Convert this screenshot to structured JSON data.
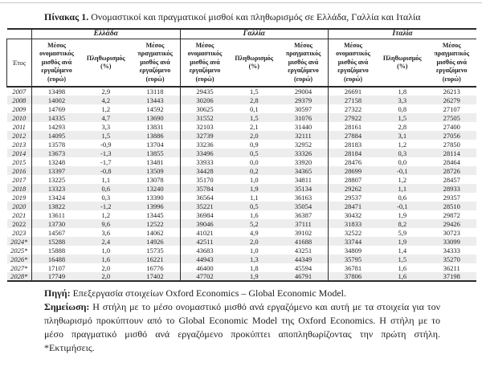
{
  "page": {
    "title_bold": "Πίνακας 1.",
    "title_rest": " Ονομαστικοί και πραγματικοί μισθοί και πληθωρισμός σε Ελλάδα, Γαλλία και Ιταλία"
  },
  "table": {
    "year_header": "Έτος",
    "countries": [
      "Ελλάδα",
      "Γαλλία",
      "Ιταλία"
    ],
    "col_headers": {
      "nominal": "Μέσος ονομαστικός μισθός ανά εργαζόμενο (ευρώ)",
      "inflation": "Πληθωρισμός (%)",
      "real": "Μέσος πραγματικός μισθός ανά εργαζόμενο (ευρώ)"
    },
    "rows": [
      {
        "year": "2007",
        "italic": true,
        "values": [
          "13498",
          "2,9",
          "13118",
          "29435",
          "1,5",
          "29004",
          "26691",
          "1,8",
          "26213"
        ]
      },
      {
        "year": "2008",
        "italic": true,
        "values": [
          "14002",
          "4,2",
          "13443",
          "30206",
          "2,8",
          "29379",
          "27158",
          "3,3",
          "26279"
        ]
      },
      {
        "year": "2009",
        "italic": true,
        "values": [
          "14769",
          "1,2",
          "14592",
          "30625",
          "0,1",
          "30597",
          "27322",
          "0,8",
          "27107"
        ]
      },
      {
        "year": "2010",
        "italic": true,
        "values": [
          "14335",
          "4,7",
          "13690",
          "31552",
          "1,5",
          "31076",
          "27922",
          "1,5",
          "27505"
        ]
      },
      {
        "year": "2011",
        "italic": true,
        "values": [
          "14293",
          "3,3",
          "13831",
          "32103",
          "2,1",
          "31440",
          "28161",
          "2,8",
          "27400"
        ]
      },
      {
        "year": "2012",
        "italic": true,
        "values": [
          "14095",
          "1,5",
          "13886",
          "32739",
          "2,0",
          "32111",
          "27884",
          "3,1",
          "27056"
        ]
      },
      {
        "year": "2013",
        "italic": true,
        "values": [
          "13578",
          "-0,9",
          "13704",
          "33236",
          "0,9",
          "32952",
          "28183",
          "1,2",
          "27850"
        ]
      },
      {
        "year": "2014",
        "italic": true,
        "values": [
          "13673",
          "-1,3",
          "13855",
          "33496",
          "0,5",
          "33326",
          "28184",
          "0,3",
          "28114"
        ]
      },
      {
        "year": "2015",
        "italic": true,
        "values": [
          "13248",
          "-1,7",
          "13481",
          "33933",
          "0,0",
          "33920",
          "28476",
          "0,0",
          "28464"
        ]
      },
      {
        "year": "2016",
        "italic": true,
        "values": [
          "13397",
          "-0,8",
          "13509",
          "34428",
          "0,2",
          "34365",
          "28699",
          "-0,1",
          "28726"
        ]
      },
      {
        "year": "2017",
        "italic": true,
        "values": [
          "13225",
          "1,1",
          "13078",
          "35170",
          "1,0",
          "34811",
          "28807",
          "1,2",
          "28457"
        ]
      },
      {
        "year": "2018",
        "italic": true,
        "values": [
          "13323",
          "0,6",
          "13240",
          "35784",
          "1,9",
          "35134",
          "29262",
          "1,1",
          "28933"
        ]
      },
      {
        "year": "2019",
        "italic": true,
        "values": [
          "13424",
          "0,3",
          "13390",
          "36564",
          "1,1",
          "36163",
          "29537",
          "0,6",
          "29357"
        ]
      },
      {
        "year": "2020",
        "italic": true,
        "values": [
          "13822",
          "-1,2",
          "13996",
          "35221",
          "0,5",
          "35054",
          "28471",
          "-0,1",
          "28510"
        ]
      },
      {
        "year": "2021",
        "italic": true,
        "values": [
          "13611",
          "1,2",
          "13445",
          "36984",
          "1,6",
          "36387",
          "30432",
          "1,9",
          "29872"
        ]
      },
      {
        "year": "2022",
        "italic": false,
        "values": [
          "13730",
          "9,6",
          "12522",
          "39046",
          "5,2",
          "37111",
          "31833",
          "8,2",
          "29426"
        ]
      },
      {
        "year": "2023",
        "italic": true,
        "values": [
          "14567",
          "3,6",
          "14062",
          "41021",
          "4,9",
          "39102",
          "32522",
          "5,9",
          "30723"
        ]
      },
      {
        "year": "2024*",
        "italic": true,
        "values": [
          "15288",
          "2,4",
          "14926",
          "42511",
          "2,0",
          "41688",
          "33744",
          "1,9",
          "33099"
        ]
      },
      {
        "year": "2025*",
        "italic": true,
        "values": [
          "15888",
          "1,0",
          "15735",
          "43683",
          "1,0",
          "43251",
          "34809",
          "1,4",
          "34333"
        ]
      },
      {
        "year": "2026*",
        "italic": true,
        "values": [
          "16488",
          "1,6",
          "16221",
          "44943",
          "1,3",
          "44349",
          "35795",
          "1,5",
          "35270"
        ]
      },
      {
        "year": "2027*",
        "italic": true,
        "values": [
          "17107",
          "2,0",
          "16776",
          "46400",
          "1,8",
          "45594",
          "36781",
          "1,6",
          "36211"
        ]
      },
      {
        "year": "2028*",
        "italic": true,
        "values": [
          "17749",
          "2,0",
          "17402",
          "47702",
          "1,9",
          "46791",
          "37806",
          "1,6",
          "37198"
        ]
      }
    ]
  },
  "notes": {
    "source_label": "Πηγή:",
    "source_text": " Επεξεργασία στοιχείων Oxford Economics – Global Economic Model.",
    "note_label": "Σημείωση:",
    "note_text": " Η στήλη με το μέσο ονομαστικό μισθό ανά εργαζόμενο και αυτή με τα στοιχεία για τον πληθωρισμό προκύπτουν από το Global Economic Model της Oxford Economics. Η στήλη με το μέσο πραγματικό μισθό ανά εργαζόμενο προκύπτει αποπληθωρίζοντας την πρώτη στήλη. *Εκτιμήσεις."
  },
  "colors": {
    "stripe": "#ededed",
    "border": "#2b2b2b",
    "text": "#1c1c1c"
  }
}
